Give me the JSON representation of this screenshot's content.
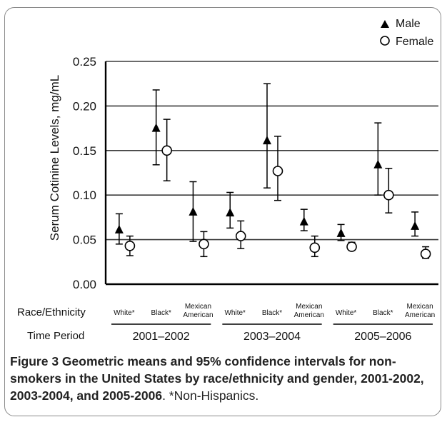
{
  "chart_data": {
    "type": "scatter",
    "ylabel": "Serum Cotinine Levels, mg/mL",
    "ylim": [
      0,
      0.25
    ],
    "yticks": [
      "0.00",
      "0.05",
      "0.10",
      "0.15",
      "0.20",
      "0.25"
    ],
    "grid": true,
    "legend_position": "top-right",
    "row_labels": {
      "race": "Race/Ethnicity",
      "time": "Time Period"
    },
    "periods": [
      "2001–2002",
      "2003–2004",
      "2005–2006"
    ],
    "race_categories": [
      "White*",
      "Black*",
      "Mexican American"
    ],
    "series": [
      {
        "name": "Male",
        "marker": "triangle",
        "points": [
          {
            "period": "2001–2002",
            "race": "White*",
            "value": 0.061,
            "lower": 0.045,
            "upper": 0.079
          },
          {
            "period": "2001–2002",
            "race": "Black*",
            "value": 0.175,
            "lower": 0.134,
            "upper": 0.218
          },
          {
            "period": "2001–2002",
            "race": "Mexican American",
            "value": 0.081,
            "lower": 0.048,
            "upper": 0.115
          },
          {
            "period": "2003–2004",
            "race": "White*",
            "value": 0.08,
            "lower": 0.063,
            "upper": 0.103
          },
          {
            "period": "2003–2004",
            "race": "Black*",
            "value": 0.161,
            "lower": 0.108,
            "upper": 0.225
          },
          {
            "period": "2003–2004",
            "race": "Mexican American",
            "value": 0.07,
            "lower": 0.06,
            "upper": 0.084
          },
          {
            "period": "2005–2006",
            "race": "White*",
            "value": 0.057,
            "lower": 0.049,
            "upper": 0.067
          },
          {
            "period": "2005–2006",
            "race": "Black*",
            "value": 0.134,
            "lower": 0.1,
            "upper": 0.181
          },
          {
            "period": "2005–2006",
            "race": "Mexican American",
            "value": 0.065,
            "lower": 0.054,
            "upper": 0.081
          }
        ]
      },
      {
        "name": "Female",
        "marker": "circle",
        "points": [
          {
            "period": "2001–2002",
            "race": "White*",
            "value": 0.043,
            "lower": 0.032,
            "upper": 0.054
          },
          {
            "period": "2001–2002",
            "race": "Black*",
            "value": 0.15,
            "lower": 0.116,
            "upper": 0.185
          },
          {
            "period": "2001–2002",
            "race": "Mexican American",
            "value": 0.045,
            "lower": 0.031,
            "upper": 0.059
          },
          {
            "period": "2003–2004",
            "race": "White*",
            "value": 0.054,
            "lower": 0.04,
            "upper": 0.071
          },
          {
            "period": "2003–2004",
            "race": "Black*",
            "value": 0.127,
            "lower": 0.094,
            "upper": 0.166
          },
          {
            "period": "2003–2004",
            "race": "Mexican American",
            "value": 0.041,
            "lower": 0.031,
            "upper": 0.054
          },
          {
            "period": "2005–2006",
            "race": "White*",
            "value": 0.042,
            "lower": 0.038,
            "upper": 0.047
          },
          {
            "period": "2005–2006",
            "race": "Black*",
            "value": 0.1,
            "lower": 0.08,
            "upper": 0.13
          },
          {
            "period": "2005–2006",
            "race": "Mexican American",
            "value": 0.034,
            "lower": 0.029,
            "upper": 0.042
          }
        ]
      }
    ]
  },
  "caption": {
    "bold": "Figure 3 Geometric means and 95% confidence intervals for non-smokers in the United States by race/ethnicity and gender, 2001-2002, 2003-2004, and 2005-2006",
    "rest": ". *Non-Hispanics."
  },
  "colors": {
    "marker": "#000000",
    "grid": "#3a3a3a",
    "frame": "#8a8a8a"
  }
}
